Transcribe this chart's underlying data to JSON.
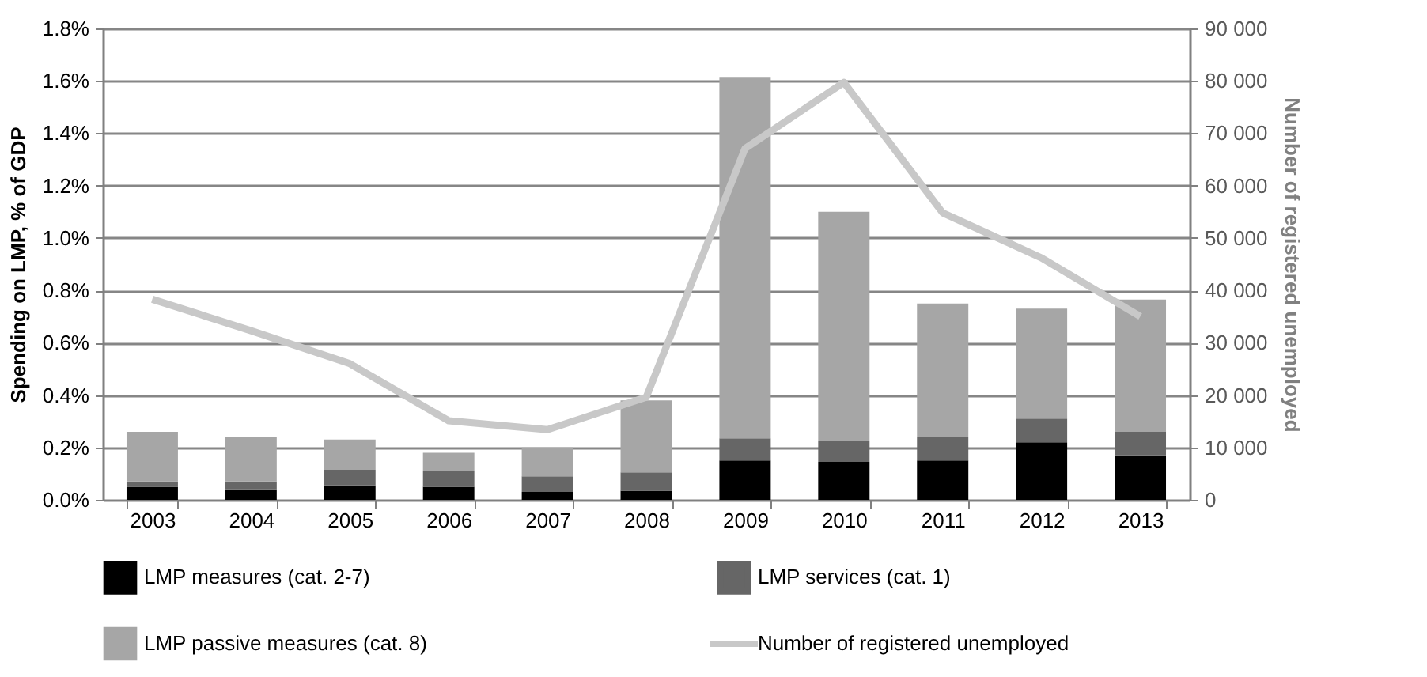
{
  "chart_data": {
    "type": "bar",
    "stacked": true,
    "ylabel": "Spending on LMP, % of GDP",
    "y2label": "Number of registered unemployed",
    "categories": [
      "2003",
      "2004",
      "2005",
      "2006",
      "2007",
      "2008",
      "2009",
      "2010",
      "2011",
      "2012",
      "2013"
    ],
    "series": [
      {
        "name": "LMP measures (cat. 2-7)",
        "color": "#000000",
        "values": [
          0.05,
          0.04,
          0.055,
          0.05,
          0.03,
          0.035,
          0.15,
          0.145,
          0.15,
          0.22,
          0.17
        ]
      },
      {
        "name": "LMP services (cat. 1)",
        "color": "#666666",
        "values": [
          0.02,
          0.03,
          0.06,
          0.06,
          0.06,
          0.07,
          0.085,
          0.08,
          0.09,
          0.09,
          0.09
        ]
      },
      {
        "name": "LMP passive measures (cat. 8)",
        "color": "#a6a6a6",
        "values": [
          0.19,
          0.17,
          0.115,
          0.07,
          0.11,
          0.275,
          1.38,
          0.875,
          0.51,
          0.42,
          0.505
        ]
      },
      {
        "name": "Number of registered unemployed",
        "color": "#c8c8c8",
        "type": "line",
        "axis": "y2",
        "values": [
          38300,
          32300,
          26000,
          15100,
          13400,
          19600,
          67100,
          79700,
          54800,
          46200,
          35000
        ]
      }
    ],
    "ylim": [
      0,
      1.8
    ],
    "yticks": [
      {
        "value": 0,
        "label": "0.0%"
      },
      {
        "value": 0.2,
        "label": "0.2%"
      },
      {
        "value": 0.4,
        "label": "0.4%"
      },
      {
        "value": 0.6,
        "label": "0.6%"
      },
      {
        "value": 0.8,
        "label": "0.8%"
      },
      {
        "value": 1.0,
        "label": "1.0%"
      },
      {
        "value": 1.2,
        "label": "1.2%"
      },
      {
        "value": 1.4,
        "label": "1.4%"
      },
      {
        "value": 1.6,
        "label": "1.6%"
      },
      {
        "value": 1.8,
        "label": "1.8%"
      }
    ],
    "y2lim": [
      0,
      90000
    ],
    "y2ticks": [
      0,
      {
        "value": 10000,
        "label": "10 000"
      },
      {
        "value": 20000,
        "label": "20 000"
      },
      {
        "value": 30000,
        "label": "30 000"
      },
      {
        "value": 40000,
        "label": "40 000"
      },
      {
        "value": 50000,
        "label": "50 000"
      },
      {
        "value": 60000,
        "label": "60 000"
      },
      {
        "value": 70000,
        "label": "70 000"
      },
      {
        "value": 80000,
        "label": "80 000"
      },
      {
        "value": 90000,
        "label": "90 000"
      }
    ],
    "grid": "y",
    "legend": "bottom"
  }
}
